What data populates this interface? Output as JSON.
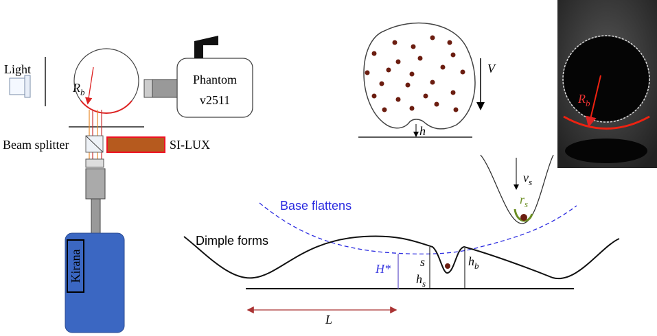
{
  "setup": {
    "light": "Light",
    "bubble_radius": {
      "base": "R",
      "sub": "b"
    },
    "camera": {
      "line1": "Phantom",
      "line2": "v2511"
    },
    "beam_splitter": "Beam splitter",
    "laser": "SI-LUX",
    "high_speed_camera": "Kirana"
  },
  "bubble": {
    "velocity": "V",
    "gap": "h"
  },
  "photo": {
    "radius": {
      "base": "R",
      "sub": "b"
    }
  },
  "particle": {
    "velocity": {
      "base": "v",
      "sub": "s"
    },
    "radius": {
      "base": "r",
      "sub": "s"
    }
  },
  "profile": {
    "base_flattens": "Base flattens",
    "dimple_forms": "Dimple forms",
    "height": "H*",
    "sink": "s",
    "particle_height": {
      "base": "h",
      "sub": "s"
    },
    "bubble_height": {
      "base": "h",
      "sub": "b"
    },
    "length": "L"
  }
}
